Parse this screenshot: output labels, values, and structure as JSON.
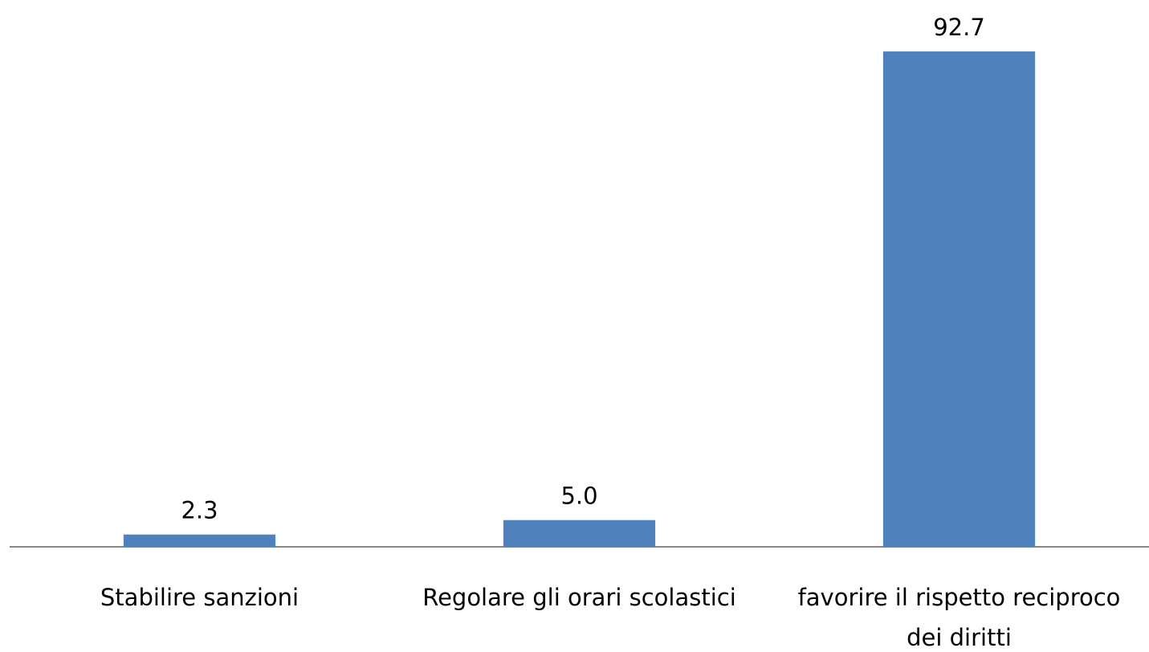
{
  "chart_data": {
    "type": "bar",
    "categories": [
      "Stabilire sanzioni",
      "Regolare gli orari scolastici",
      "favorire il rispetto reciproco dei diritti"
    ],
    "values": [
      2.3,
      5.0,
      92.7
    ],
    "value_labels": [
      "2.3",
      "5.0",
      "92.7"
    ],
    "color": "#4f81bd",
    "ylim": [
      0,
      100
    ],
    "grid": false
  }
}
